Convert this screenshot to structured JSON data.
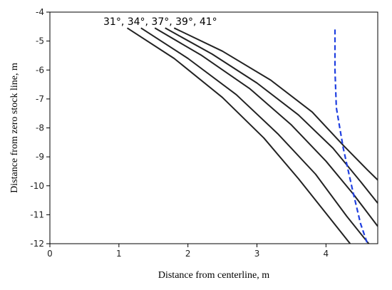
{
  "chart_data": {
    "type": "line",
    "title": "",
    "xlabel": "Distance from centerline,  m",
    "ylabel": "Distance from zero stock line,  m",
    "xlim": [
      0,
      4.75
    ],
    "ylim": [
      -12,
      -4
    ],
    "x_ticks": [
      0,
      1,
      2,
      3,
      4
    ],
    "y_ticks": [
      -12,
      -11,
      -10,
      -9,
      -8,
      -7,
      -6,
      -5,
      -4
    ],
    "grid": false,
    "annotation": "31°, 34°, 37°, 39°, 41°",
    "series": [
      {
        "color": "#222222",
        "style": "solid",
        "x": [
          1.12,
          1.8,
          2.5,
          3.1,
          3.6,
          4.05,
          4.35
        ],
        "y": [
          -4.55,
          -5.6,
          -6.95,
          -8.35,
          -9.75,
          -11.1,
          -12.0
        ]
      },
      {
        "color": "#222222",
        "style": "solid",
        "x": [
          1.32,
          2.0,
          2.7,
          3.3,
          3.85,
          4.3,
          4.62
        ],
        "y": [
          -4.55,
          -5.6,
          -6.85,
          -8.2,
          -9.6,
          -11.05,
          -12.0
        ]
      },
      {
        "color": "#222222",
        "style": "solid",
        "x": [
          1.52,
          2.2,
          2.9,
          3.5,
          4.0,
          4.4,
          4.75
        ],
        "y": [
          -4.55,
          -5.5,
          -6.65,
          -7.9,
          -9.15,
          -10.3,
          -11.4
        ]
      },
      {
        "color": "#222222",
        "style": "solid",
        "x": [
          1.67,
          2.35,
          3.0,
          3.6,
          4.1,
          4.5,
          4.75
        ],
        "y": [
          -4.55,
          -5.45,
          -6.45,
          -7.55,
          -8.7,
          -9.85,
          -10.6
        ]
      },
      {
        "color": "#222222",
        "style": "solid",
        "x": [
          1.8,
          2.5,
          3.2,
          3.8,
          4.25,
          4.6,
          4.75
        ],
        "y": [
          -4.55,
          -5.35,
          -6.35,
          -7.45,
          -8.6,
          -9.45,
          -9.8
        ]
      },
      {
        "color": "#1f3fe0",
        "style": "dashed",
        "x": [
          4.13,
          4.13,
          4.15,
          4.25,
          4.38,
          4.5,
          4.6
        ],
        "y": [
          -4.6,
          -6.0,
          -7.3,
          -8.7,
          -10.1,
          -11.3,
          -12.0
        ]
      }
    ]
  }
}
